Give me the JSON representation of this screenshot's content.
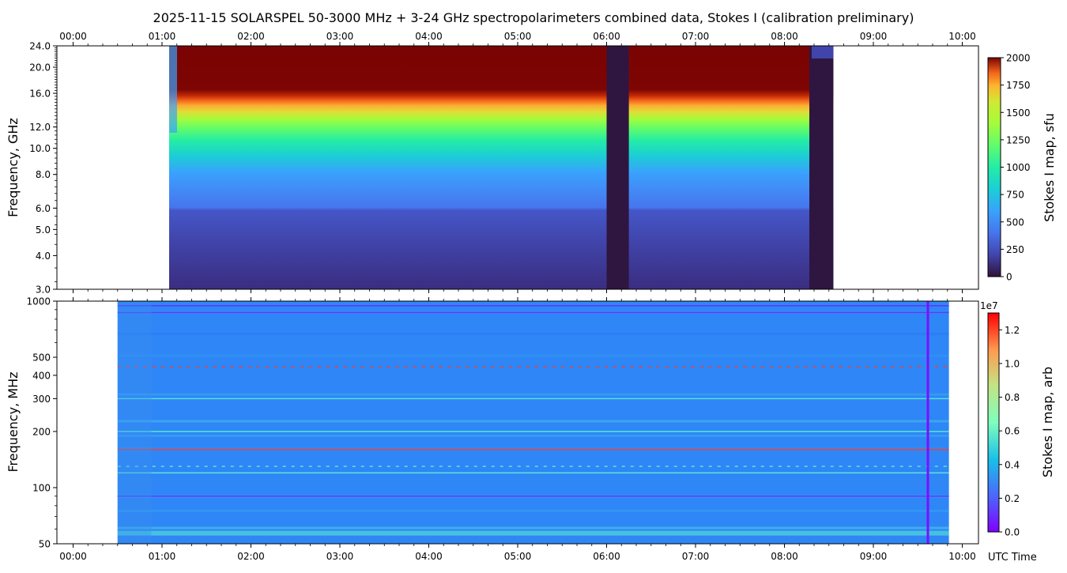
{
  "title": "2025-11-15  SOLARSPEL  50-3000 MHz  +  3-24 GHz  spectropolarimeters combined data,  Stokes I  (calibration preliminary)",
  "time_ticks": [
    "00:00",
    "01:00",
    "02:00",
    "03:00",
    "04:00",
    "05:00",
    "06:00",
    "07:00",
    "08:00",
    "09:00",
    "10:00"
  ],
  "x_axis_label": "UTC Time",
  "chart_data": [
    {
      "type": "heatmap",
      "panel": "top",
      "ylabel": "Frequency, GHz",
      "y_scale": "log",
      "ylim": [
        3.0,
        24.0
      ],
      "y_ticks": [
        3.0,
        4.0,
        5.0,
        6.0,
        8.0,
        10.0,
        12.0,
        16.0,
        20.0,
        24.0
      ],
      "y_tick_labels": [
        "3.0",
        "4.0",
        "5.0",
        "6.0",
        "8.0",
        "10.0",
        "12.0",
        "16.0",
        "20.0",
        "24.0"
      ],
      "x_range_hours": [
        0.0,
        10.2
      ],
      "colorbar": {
        "label": "Stokes I map, sfu",
        "colormap": "turbo",
        "min": 0,
        "max": 2000,
        "ticks": [
          0,
          250,
          500,
          750,
          1000,
          1250,
          1500,
          1750,
          2000
        ],
        "tick_labels": [
          "0",
          "250",
          "500",
          "750",
          "1000",
          "1250",
          "1500",
          "1750",
          "2000"
        ]
      },
      "data_interval_hours": [
        1.08,
        8.55
      ],
      "gaps_hours": [
        [
          6.0,
          6.25
        ],
        [
          8.28,
          8.55
        ]
      ],
      "saturation_above_ghz": 16.0
    },
    {
      "type": "heatmap",
      "panel": "bottom",
      "ylabel": "Frequency, MHz",
      "y_scale": "log",
      "ylim": [
        50,
        1000
      ],
      "y_ticks": [
        50,
        100,
        200,
        300,
        400,
        500,
        1000
      ],
      "y_tick_labels": [
        "50",
        "100",
        "200",
        "300",
        "400",
        "500",
        "1000"
      ],
      "x_range_hours": [
        0.0,
        10.2
      ],
      "colorbar": {
        "label": "Stokes I map, arb",
        "colormap": "rainbow",
        "min": 0.0,
        "max": 1.3,
        "offset_label": "1e7",
        "ticks": [
          0.0,
          0.2,
          0.4,
          0.6,
          0.8,
          1.0,
          1.2
        ],
        "tick_labels": [
          "0.0",
          "0.2",
          "0.4",
          "0.6",
          "0.8",
          "1.0",
          "1.2"
        ]
      },
      "data_interval_hours": [
        0.5,
        9.85
      ],
      "rfi_lines_mhz": [
        945,
        870,
        445,
        300,
        200,
        160,
        130,
        120,
        90,
        57
      ],
      "vertical_artifact_hour": 9.6
    }
  ]
}
